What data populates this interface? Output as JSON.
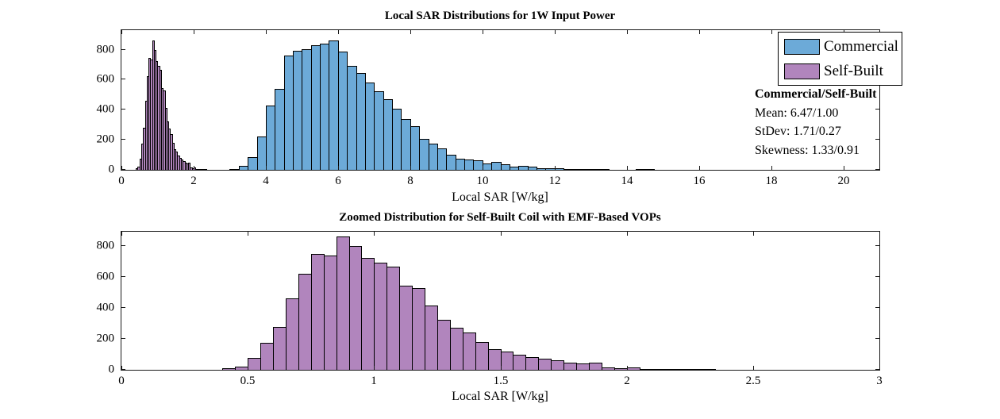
{
  "colors": {
    "commercial_fill": "#6CAAD8",
    "self_built_fill": "#B185BD",
    "bar_edge": "#000000",
    "axis": "#1a1a1a",
    "background": "#ffffff"
  },
  "chart_data": [
    {
      "type": "bar",
      "subtype": "histogram",
      "title": "Local SAR Distributions for 1W Input Power",
      "xlabel": "Local SAR [W/kg]",
      "ylabel": "",
      "xlim": [
        0,
        21
      ],
      "ylim": [
        0,
        930
      ],
      "grid": false,
      "legend_position": "northeast",
      "xticks": [
        {
          "value": 0,
          "label": "0"
        },
        {
          "value": 2,
          "label": "2"
        },
        {
          "value": 4,
          "label": "4"
        },
        {
          "value": 6,
          "label": "6"
        },
        {
          "value": 8,
          "label": "8"
        },
        {
          "value": 10,
          "label": "10"
        },
        {
          "value": 12,
          "label": "12"
        },
        {
          "value": 14,
          "label": "14"
        },
        {
          "value": 16,
          "label": "16"
        },
        {
          "value": 18,
          "label": "18"
        },
        {
          "value": 20,
          "label": "20"
        }
      ],
      "yticks": [
        {
          "value": 0,
          "label": "0"
        },
        {
          "value": 200,
          "label": "200"
        },
        {
          "value": 400,
          "label": "400"
        },
        {
          "value": 600,
          "label": "600"
        },
        {
          "value": 800,
          "label": "800"
        }
      ],
      "series": [
        {
          "name": "Commercial",
          "color": "#6CAAD8",
          "bin_start": 3.0,
          "bin_width": 0.25,
          "counts": [
            5,
            25,
            85,
            220,
            430,
            540,
            760,
            790,
            805,
            830,
            842,
            862,
            785,
            690,
            645,
            580,
            525,
            468,
            408,
            338,
            290,
            205,
            172,
            145,
            100,
            75,
            70,
            66,
            40,
            55,
            38,
            22,
            24,
            22,
            13,
            10,
            9,
            6,
            4,
            4,
            2,
            2,
            0,
            0,
            0,
            3,
            4
          ]
        },
        {
          "name": "Self-Built",
          "color": "#B185BD",
          "bin_start": 0.4,
          "bin_width": 0.05,
          "counts": [
            8,
            20,
            76,
            172,
            278,
            459,
            621,
            746,
            734,
            860,
            796,
            722,
            692,
            665,
            543,
            528,
            413,
            320,
            273,
            240,
            180,
            135,
            120,
            95,
            80,
            70,
            60,
            45,
            40,
            46,
            14,
            8,
            15,
            4,
            2,
            6,
            2,
            1,
            2
          ]
        }
      ],
      "annotations": {
        "header": "Commercial/Self-Built",
        "lines": [
          "Mean: 6.47/1.00",
          "StDev: 1.71/0.27",
          "Skewness: 1.33/0.91"
        ]
      }
    },
    {
      "type": "bar",
      "subtype": "histogram",
      "title": "Zoomed Distribution for Self-Built Coil with EMF-Based VOPs",
      "xlabel": "Local SAR [W/kg]",
      "ylabel": "",
      "xlim": [
        0,
        3
      ],
      "ylim": [
        0,
        890
      ],
      "grid": false,
      "xticks": [
        {
          "value": 0,
          "label": "0"
        },
        {
          "value": 0.5,
          "label": "0.5"
        },
        {
          "value": 1,
          "label": "1"
        },
        {
          "value": 1.5,
          "label": "1.5"
        },
        {
          "value": 2,
          "label": "2"
        },
        {
          "value": 2.5,
          "label": "2.5"
        },
        {
          "value": 3,
          "label": "3"
        }
      ],
      "yticks": [
        {
          "value": 0,
          "label": "0"
        },
        {
          "value": 200,
          "label": "200"
        },
        {
          "value": 400,
          "label": "400"
        },
        {
          "value": 600,
          "label": "600"
        },
        {
          "value": 800,
          "label": "800"
        }
      ],
      "series": [
        {
          "name": "Self-Built",
          "color": "#B185BD",
          "bin_start": 0.4,
          "bin_width": 0.05,
          "counts": [
            8,
            20,
            76,
            172,
            278,
            459,
            621,
            746,
            734,
            860,
            796,
            722,
            692,
            665,
            543,
            528,
            413,
            320,
            273,
            240,
            180,
            135,
            120,
            95,
            80,
            70,
            60,
            45,
            40,
            46,
            14,
            8,
            15,
            4,
            2,
            6,
            2,
            1,
            2
          ]
        }
      ]
    }
  ]
}
